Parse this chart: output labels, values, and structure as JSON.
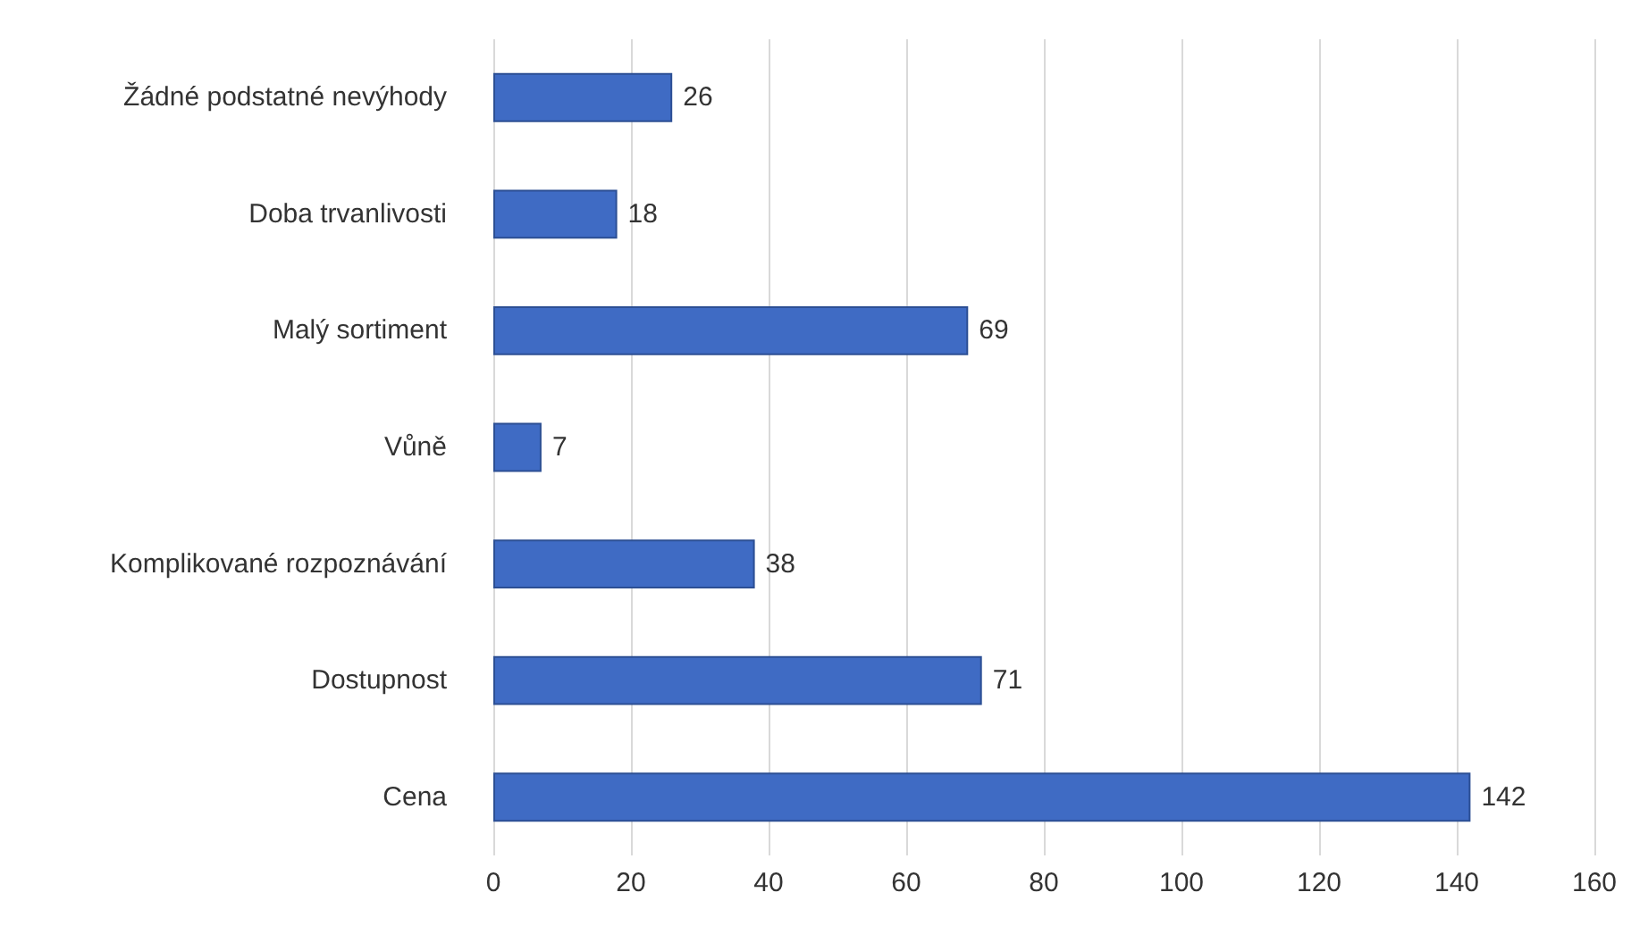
{
  "chart_data": {
    "type": "bar",
    "orientation": "horizontal",
    "categories": [
      "Žádné podstatné nevýhody",
      "Doba trvanlivosti",
      "Malý sortiment",
      "Vůně",
      "Komplikované rozpoznávání",
      "Dostupnost",
      "Cena"
    ],
    "values": [
      26,
      18,
      69,
      7,
      38,
      71,
      142
    ],
    "color": "#3f6bc4",
    "xlim": [
      0,
      160
    ],
    "xticks": [
      0,
      20,
      40,
      60,
      80,
      100,
      120,
      140,
      160
    ],
    "grid": "x",
    "data_labels": true
  }
}
